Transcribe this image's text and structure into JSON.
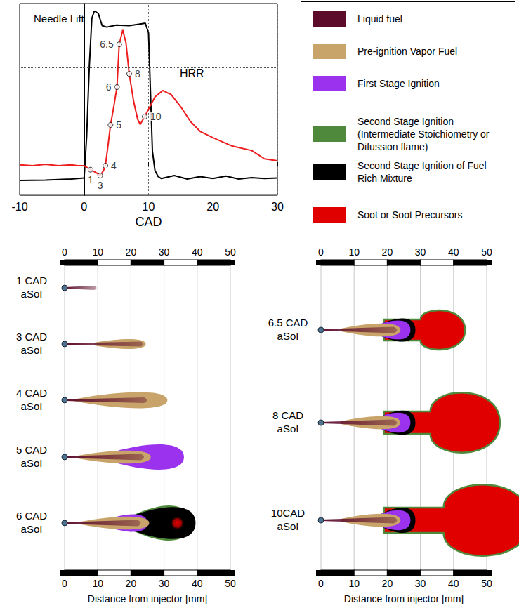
{
  "chart_data": {
    "type": "line",
    "x_label": "CAD",
    "xlim": [
      -10,
      30
    ],
    "xticks": [
      -10,
      0,
      10,
      20,
      30
    ],
    "ylim": [
      -0.6,
      3.3
    ],
    "yticks": [
      0,
      1,
      2
    ],
    "grid": true,
    "tick_labels": "x",
    "series": [
      {
        "name": "Needle Lift",
        "color": "#000000",
        "x": [
          -10,
          -6,
          -2,
          0,
          0.4,
          0.8,
          1.2,
          1.6,
          2.2,
          2.8,
          3.5,
          5,
          7,
          8.5,
          9.5,
          10,
          10.3,
          10.6,
          11,
          11.5,
          12,
          14,
          16,
          18,
          20,
          22,
          24,
          26,
          28,
          30
        ],
        "values": [
          -0.3,
          -0.29,
          -0.27,
          -0.25,
          0.6,
          2.0,
          3.0,
          3.15,
          3.1,
          2.85,
          2.82,
          2.86,
          2.85,
          2.88,
          2.9,
          2.7,
          1.5,
          0.3,
          -0.1,
          -0.22,
          -0.26,
          -0.2,
          -0.27,
          -0.22,
          -0.26,
          -0.21,
          -0.27,
          -0.24,
          -0.26,
          -0.25
        ]
      },
      {
        "name": "HRR",
        "color": "#ee1c1c",
        "x": [
          -10,
          -8,
          -6,
          -4,
          -2,
          -1,
          0,
          1,
          2,
          2.5,
          3,
          3.3,
          3.7,
          4.1,
          4.6,
          5.1,
          5.45,
          6,
          6.5,
          7,
          7.7,
          8.3,
          8.7,
          9.4,
          10,
          11,
          12.2,
          13.5,
          15,
          16.5,
          18,
          20,
          23,
          26,
          28,
          30
        ],
        "values": [
          0.02,
          0,
          0.03,
          0,
          0.02,
          0,
          0,
          -0.08,
          -0.15,
          -0.2,
          -0.1,
          0,
          0.4,
          0.83,
          1.2,
          1.6,
          2.47,
          2.76,
          2.5,
          1.87,
          1.3,
          0.95,
          0.84,
          1.0,
          1.15,
          1.4,
          1.53,
          1.45,
          1.2,
          0.9,
          0.7,
          0.57,
          0.4,
          0.31,
          0.14,
          0.1
        ]
      }
    ],
    "annotations": [
      {
        "label": "1",
        "x": 1,
        "y": -0.08
      },
      {
        "label": "3",
        "x": 2.5,
        "y": -0.2
      },
      {
        "label": "4",
        "x": 3.3,
        "y": 0
      },
      {
        "label": "5",
        "x": 4.1,
        "y": 0.83
      },
      {
        "label": "6",
        "x": 5.1,
        "y": 1.6
      },
      {
        "label": "6.5",
        "x": 5.45,
        "y": 2.47
      },
      {
        "label": "8",
        "x": 7,
        "y": 1.87
      },
      {
        "label": "10",
        "x": 9.4,
        "y": 1.0
      }
    ]
  },
  "legend": {
    "items": [
      {
        "label": "Liquid fuel",
        "color": "#5c0b2b"
      },
      {
        "label": "Pre-ignition Vapor Fuel",
        "color": "#c8a46a"
      },
      {
        "label": "First Stage Ignition",
        "color": "#9a32ee"
      },
      {
        "label": "Second Stage Ignition (Intermediate Stoichiometry or Difussion flame)",
        "color": "#4f8a3c"
      },
      {
        "label": "Second Stage Ignition of Fuel Rich Mixture",
        "color": "#000000"
      },
      {
        "label": "Soot or Soot Precursors",
        "color": "#e00000"
      }
    ]
  },
  "diagram": {
    "x_label": "Distance from injector [mm]",
    "xlim": [
      0,
      50
    ],
    "xticks": [
      0,
      10,
      20,
      30,
      40,
      50
    ],
    "panels": [
      {
        "snapshots": [
          "1 CAD aSoI",
          "3 CAD aSoI",
          "4 CAD aSoI",
          "5 CAD aSoI",
          "6 CAD aSoI"
        ]
      },
      {
        "snapshots": [
          "6.5 CAD aSoI",
          "8 CAD aSoI",
          "10CAD aSoI"
        ]
      }
    ]
  }
}
